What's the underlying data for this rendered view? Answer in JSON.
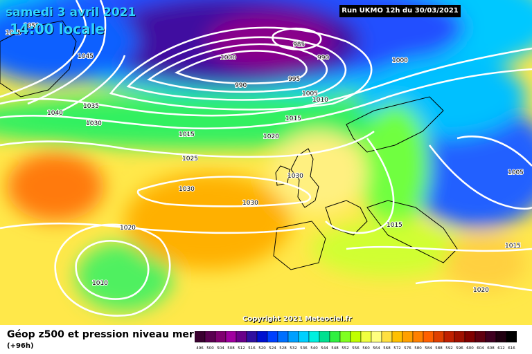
{
  "header": {
    "date": "samedi 3 avril 2021",
    "time": "14:00 locale",
    "run": "Run UKMO 12h du 30/03/2021"
  },
  "copyright": "Copyright 2021 Meteociel.fr",
  "footer": {
    "title": "Géop z500 et pression niveau mer",
    "subtitle": "(+96h)"
  },
  "scale": {
    "values": [
      "496",
      "500",
      "504",
      "508",
      "512",
      "516",
      "520",
      "524",
      "528",
      "532",
      "536",
      "540",
      "544",
      "548",
      "552",
      "556",
      "560",
      "564",
      "568",
      "572",
      "576",
      "580",
      "584",
      "588",
      "592",
      "596",
      "600",
      "604",
      "608",
      "612",
      "616"
    ],
    "colors": [
      "#3a0030",
      "#5a0050",
      "#800070",
      "#a000a0",
      "#6a008a",
      "#3010a0",
      "#0010d0",
      "#0040ff",
      "#0070ff",
      "#00a0ff",
      "#00d0ff",
      "#00f0e0",
      "#00e090",
      "#30f040",
      "#80ff20",
      "#c0ff00",
      "#f0ff40",
      "#ffff80",
      "#ffe040",
      "#ffc000",
      "#ffa000",
      "#ff8000",
      "#ff6000",
      "#e04000",
      "#c02000",
      "#a01000",
      "#800000",
      "#600010",
      "#400020",
      "#200010",
      "#000000"
    ]
  },
  "isobar_labels": [
    {
      "text": "1045"
    },
    {
      "text": "1050"
    },
    {
      "text": "1045"
    },
    {
      "text": "1040"
    },
    {
      "text": "1035"
    },
    {
      "text": "1030"
    },
    {
      "text": "1000"
    },
    {
      "text": "985"
    },
    {
      "text": "990"
    },
    {
      "text": "995"
    },
    {
      "text": "990"
    },
    {
      "text": "1000"
    },
    {
      "text": "1005"
    },
    {
      "text": "1010"
    },
    {
      "text": "1015"
    },
    {
      "text": "1015"
    },
    {
      "text": "1020"
    },
    {
      "text": "1025"
    },
    {
      "text": "1030"
    },
    {
      "text": "1030"
    },
    {
      "text": "1030"
    },
    {
      "text": "1020"
    },
    {
      "text": "1010"
    },
    {
      "text": "1015"
    },
    {
      "text": "1015"
    },
    {
      "text": "1005"
    },
    {
      "text": "1020"
    }
  ]
}
